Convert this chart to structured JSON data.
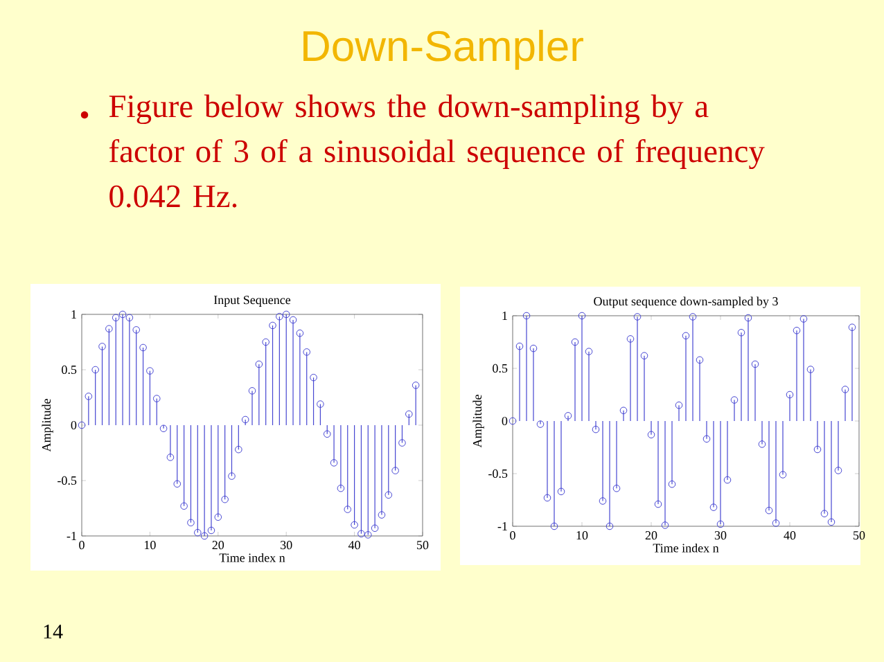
{
  "chart_data": [
    {
      "type": "lollipop",
      "title": "Input Sequence",
      "xlabel": "Time index n",
      "ylabel": "Amplitude",
      "annotations": [
        "Down-Sampler",
        "Figure below shows the down-sampling by a factor of 3 of a sinusoidal sequence of frequency 0.042 Hz.",
        "14"
      ],
      "x": [
        0,
        1,
        2,
        3,
        4,
        5,
        6,
        7,
        8,
        9,
        10,
        11,
        12,
        13,
        14,
        15,
        16,
        17,
        18,
        19,
        20,
        21,
        22,
        23,
        24,
        25,
        26,
        27,
        28,
        29,
        30,
        31,
        32,
        33,
        34,
        35,
        36,
        37,
        38,
        39,
        40,
        41,
        42,
        43,
        44,
        45,
        46,
        47,
        48,
        49
      ],
      "series": [
        {
          "color": "#4646d2",
          "values": [
            0,
            0.26,
            0.5,
            0.71,
            0.87,
            0.97,
            1.0,
            0.97,
            0.86,
            0.7,
            0.49,
            0.24,
            -0.03,
            -0.29,
            -0.53,
            -0.73,
            -0.88,
            -0.97,
            -1.0,
            -0.95,
            -0.83,
            -0.67,
            -0.46,
            -0.22,
            0.05,
            0.31,
            0.55,
            0.75,
            0.9,
            0.98,
            1.0,
            0.95,
            0.83,
            0.66,
            0.43,
            0.19,
            -0.08,
            -0.34,
            -0.57,
            -0.76,
            -0.9,
            -0.98,
            -0.99,
            -0.93,
            -0.81,
            -0.63,
            -0.41,
            -0.16,
            0.1,
            0.36
          ]
        }
      ],
      "xlim": [
        0,
        50
      ],
      "xticks": [
        0,
        10,
        20,
        30,
        40,
        50
      ],
      "ylim": [
        -1,
        1
      ],
      "yticks": [
        -1,
        -0.5,
        0,
        0.5,
        1
      ],
      "marker": "circle"
    },
    {
      "type": "lollipop",
      "title": "Output sequence down-sampled by 3",
      "xlabel": "Time index n",
      "ylabel": "Amplitude",
      "x": [
        0,
        1,
        2,
        3,
        4,
        5,
        6,
        7,
        8,
        9,
        10,
        11,
        12,
        13,
        14,
        15,
        16,
        17,
        18,
        19,
        20,
        21,
        22,
        23,
        24,
        25,
        26,
        27,
        28,
        29,
        30,
        31,
        32,
        33,
        34,
        35,
        36,
        37,
        38,
        39,
        40,
        41,
        42,
        43,
        44,
        45,
        46,
        47,
        48,
        49
      ],
      "series": [
        {
          "color": "#4646d2",
          "values": [
            0,
            0.71,
            1.0,
            0.69,
            -0.03,
            -0.73,
            -1.0,
            -0.67,
            0.05,
            0.75,
            1.0,
            0.66,
            -0.08,
            -0.76,
            -1.0,
            -0.64,
            0.1,
            0.78,
            0.99,
            0.62,
            -0.13,
            -0.79,
            -0.99,
            -0.6,
            0.15,
            0.81,
            0.99,
            0.58,
            -0.17,
            -0.82,
            -0.98,
            -0.56,
            0.2,
            0.84,
            0.98,
            0.54,
            -0.22,
            -0.85,
            -0.97,
            -0.51,
            0.25,
            0.86,
            0.97,
            0.49,
            -0.27,
            -0.88,
            -0.96,
            -0.47,
            0.3,
            0.89
          ]
        }
      ],
      "xlim": [
        0,
        50
      ],
      "xticks": [
        0,
        10,
        20,
        30,
        40,
        50
      ],
      "ylim": [
        -1,
        1
      ],
      "yticks": [
        -1,
        -0.5,
        0,
        0.5,
        1
      ],
      "marker": "circle"
    }
  ]
}
